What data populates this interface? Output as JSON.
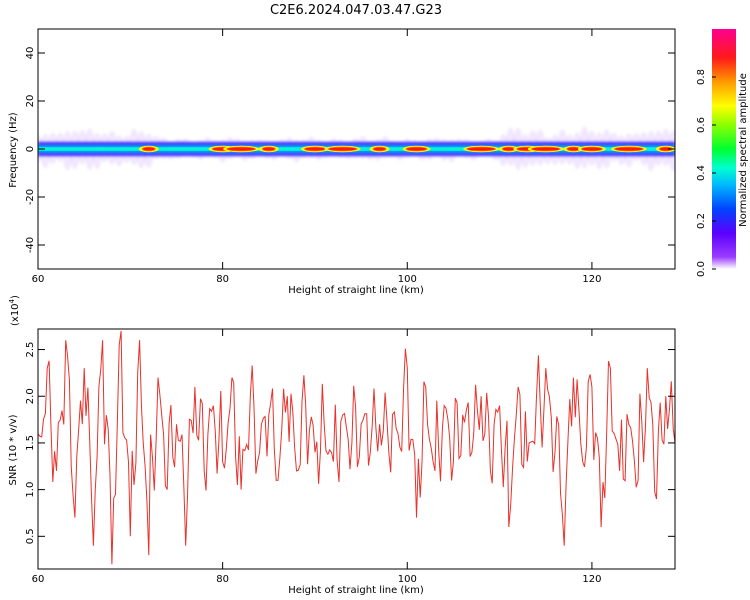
{
  "figure": {
    "title": "C2E6.2024.047.03.47.G23"
  },
  "chart_data": [
    {
      "type": "heatmap",
      "description_panel": "spectrogram",
      "xlabel": "Height of straight line (km)",
      "ylabel": "Frequency (Hz)",
      "xlim": [
        60,
        129
      ],
      "ylim": [
        -50,
        50
      ],
      "x_ticks": [
        60,
        80,
        100,
        120
      ],
      "y_ticks": [
        -40,
        -20,
        0,
        20,
        40
      ],
      "colorbar": {
        "label": "Normalized spectral amplitude",
        "range": [
          0,
          1
        ],
        "ticks": [
          0.0,
          0.2,
          0.4,
          0.6,
          0.8
        ],
        "tick_labels": [
          "0.0",
          "0.2",
          "0.4",
          "0.6",
          "0.8"
        ]
      },
      "band_center_hz": 0,
      "band_halfwidth_hz": 3,
      "strong_peak_x_km": [
        72,
        80,
        82,
        85,
        90,
        93,
        97,
        101,
        108,
        111,
        113,
        115,
        118,
        120,
        124,
        128
      ],
      "grid": false
    },
    {
      "type": "line",
      "description_panel": "snr",
      "xlabel": "Height of straight line (km)",
      "ylabel": "SNR (10 * v/v)",
      "scale_label": "(x10",
      "scale_exp": "4",
      "scale_close": ")",
      "xlim": [
        60,
        129
      ],
      "ylim": [
        0.15,
        2.72
      ],
      "x_ticks": [
        60,
        80,
        100,
        120
      ],
      "y_ticks": [
        0.5,
        1.0,
        1.5,
        2.0,
        2.5
      ],
      "y_tick_labels": [
        "0.5",
        "1.0",
        "1.5",
        "2.0",
        "2.5"
      ],
      "series": [
        {
          "color": "#e8322b",
          "x": [
            60,
            61,
            62,
            63,
            64,
            65,
            66,
            67,
            68,
            69,
            70,
            71,
            72,
            73,
            74,
            75,
            76,
            77,
            78,
            79,
            80,
            81,
            82,
            83,
            84,
            85,
            86,
            87,
            88,
            89,
            90,
            91,
            92,
            93,
            94,
            95,
            96,
            97,
            98,
            99,
            100,
            101,
            102,
            103,
            104,
            105,
            106,
            107,
            108,
            109,
            110,
            111,
            112,
            113,
            114,
            115,
            116,
            117,
            118,
            119,
            120,
            121,
            122,
            123,
            124,
            125,
            126,
            127,
            128,
            129
          ],
          "values": [
            1.6,
            2.3,
            1.2,
            2.6,
            0.7,
            2.3,
            0.4,
            2.6,
            0.2,
            2.7,
            0.5,
            2.6,
            0.3,
            2.2,
            1.0,
            1.7,
            0.4,
            2.1,
            1.2,
            1.9,
            1.3,
            2.2,
            1.0,
            2.0,
            1.4,
            1.8,
            1.1,
            2.0,
            1.2,
            1.9,
            1.4,
            1.7,
            1.3,
            1.8,
            1.5,
            1.7,
            1.4,
            1.7,
            1.4,
            1.6,
            2.3,
            0.7,
            2.1,
            1.2,
            1.9,
            1.3,
            1.8,
            1.4,
            2.0,
            1.2,
            1.9,
            0.6,
            2.1,
            1.3,
            2.0,
            2.3,
            1.4,
            0.4,
            2.2,
            1.3,
            2.1,
            0.6,
            2.3,
            1.2,
            1.7,
            1.1,
            2.3,
            0.9,
            2.0,
            1.5
          ]
        }
      ],
      "grid": false
    }
  ]
}
